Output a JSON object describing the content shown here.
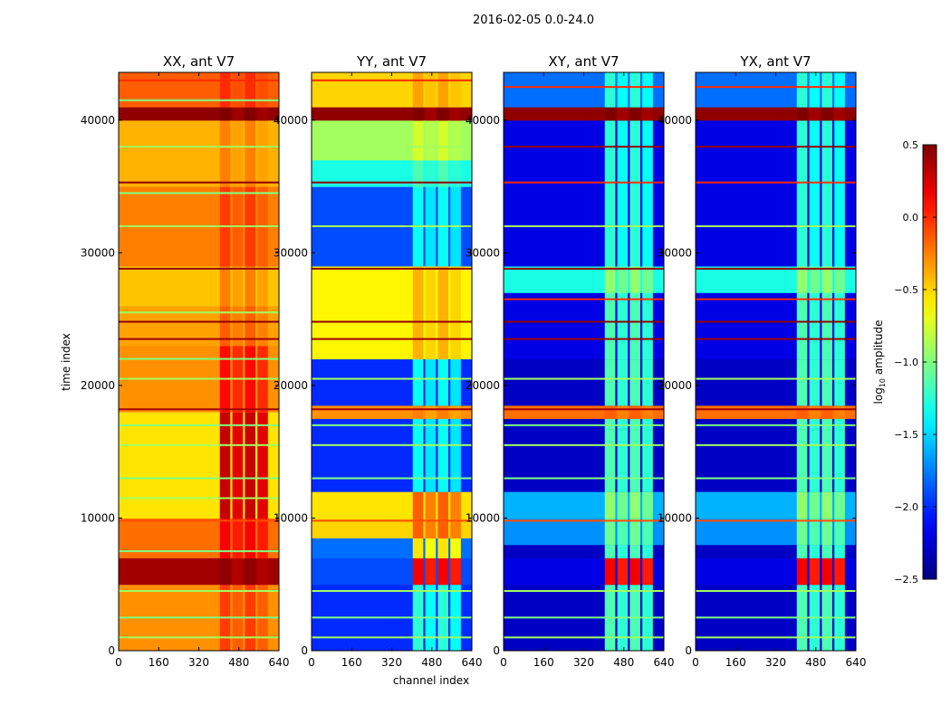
{
  "chart_data": {
    "type": "heatmap",
    "suptitle": "2016-02-05 0.0-24.0",
    "xlabel": "channel index",
    "ylabel": "time index",
    "xlim": [
      0,
      640
    ],
    "ylim": [
      0,
      43600
    ],
    "xticks": [
      0,
      160,
      320,
      480,
      640
    ],
    "yticks": [
      0,
      10000,
      20000,
      30000,
      40000
    ],
    "colorbar": {
      "label": "log10 amplitude",
      "label_base": "log",
      "label_sub": "10",
      "label_rest": " amplitude",
      "range": [
        -2.5,
        0.5
      ],
      "ticks": [
        "0.5",
        "0.0",
        "−0.5",
        "−1.0",
        "−1.5",
        "−2.0",
        "−2.5"
      ],
      "tick_values": [
        0.5,
        0.0,
        -0.5,
        -1.0,
        -1.5,
        -2.0,
        -2.5
      ],
      "colormap": "jet"
    },
    "inner_channel_range": [
      400,
      600
    ],
    "panels": [
      {
        "title": "XX, ant V7",
        "bands": [
          [
            0,
            5000,
            -0.3,
            -0.1
          ],
          [
            5000,
            7000,
            0.4,
            0.4
          ],
          [
            7000,
            10000,
            -0.2,
            0.1
          ],
          [
            10000,
            18000,
            -0.55,
            0.25
          ],
          [
            18000,
            23000,
            -0.3,
            0.05
          ],
          [
            23000,
            26000,
            -0.35,
            -0.2
          ],
          [
            26000,
            29000,
            -0.45,
            -0.3
          ],
          [
            29000,
            35000,
            -0.25,
            -0.1
          ],
          [
            35000,
            40000,
            -0.4,
            -0.3
          ],
          [
            40000,
            41000,
            0.45,
            0.45
          ],
          [
            41000,
            43600,
            -0.15,
            -0.05
          ]
        ],
        "lines": [
          [
            1000,
            -0.9
          ],
          [
            2500,
            -1.0
          ],
          [
            4500,
            -0.9
          ],
          [
            7500,
            -1.0
          ],
          [
            9800,
            -0.1
          ],
          [
            11500,
            -0.9
          ],
          [
            13000,
            -1.0
          ],
          [
            15500,
            -0.9
          ],
          [
            17000,
            -1.0
          ],
          [
            18200,
            0.4
          ],
          [
            20500,
            -0.9
          ],
          [
            22000,
            -1.0
          ],
          [
            23500,
            0.4
          ],
          [
            24800,
            0.45
          ],
          [
            25500,
            -0.9
          ],
          [
            28800,
            0.45
          ],
          [
            32000,
            -0.9
          ],
          [
            34500,
            -1.0
          ],
          [
            35300,
            0.45
          ],
          [
            38000,
            -0.9
          ],
          [
            41500,
            -1.0
          ],
          [
            43000,
            0.0
          ]
        ]
      },
      {
        "title": "YY, ant V7",
        "bands": [
          [
            0,
            5000,
            -2.0,
            -1.3
          ],
          [
            5000,
            7000,
            -1.9,
            0.1
          ],
          [
            7000,
            8500,
            -1.8,
            -0.6
          ],
          [
            8500,
            10000,
            -0.5,
            -0.2
          ],
          [
            10000,
            12000,
            -0.55,
            -0.2
          ],
          [
            12000,
            17500,
            -2.0,
            -1.4
          ],
          [
            17500,
            18500,
            -0.3,
            -0.3
          ],
          [
            18500,
            22000,
            -2.0,
            -1.4
          ],
          [
            22000,
            29000,
            -0.6,
            -0.45
          ],
          [
            29000,
            35000,
            -1.9,
            -1.4
          ],
          [
            35000,
            37000,
            -1.3,
            -1.2
          ],
          [
            37000,
            40000,
            -0.9,
            -0.8
          ],
          [
            40000,
            41000,
            0.45,
            0.45
          ],
          [
            41000,
            43600,
            -0.5,
            -0.4
          ]
        ],
        "lines": [
          [
            1000,
            -0.9
          ],
          [
            2500,
            -1.0
          ],
          [
            4500,
            -0.9
          ],
          [
            9800,
            -0.1
          ],
          [
            13000,
            -1.0
          ],
          [
            15500,
            -0.9
          ],
          [
            17000,
            -1.0
          ],
          [
            18200,
            0.4
          ],
          [
            20500,
            -0.9
          ],
          [
            23500,
            0.4
          ],
          [
            24800,
            0.45
          ],
          [
            28800,
            0.45
          ],
          [
            32000,
            -0.9
          ],
          [
            35300,
            0.45
          ],
          [
            38000,
            -0.9
          ],
          [
            43000,
            0.0
          ]
        ]
      },
      {
        "title": "XY, ant V7",
        "bands": [
          [
            0,
            5000,
            -2.3,
            -1.2
          ],
          [
            5000,
            7000,
            -2.2,
            0.1
          ],
          [
            7000,
            8000,
            -2.3,
            -1.2
          ],
          [
            8000,
            10000,
            -1.7,
            -1.1
          ],
          [
            10000,
            12000,
            -1.6,
            -1.0
          ],
          [
            12000,
            17500,
            -2.3,
            -1.2
          ],
          [
            17500,
            18500,
            -0.2,
            -0.2
          ],
          [
            18500,
            22000,
            -2.3,
            -1.2
          ],
          [
            22000,
            27000,
            -2.2,
            -1.2
          ],
          [
            27000,
            29000,
            -1.3,
            -1.0
          ],
          [
            29000,
            40000,
            -2.2,
            -1.3
          ],
          [
            40000,
            41000,
            0.45,
            0.45
          ],
          [
            41000,
            43600,
            -1.8,
            -1.3
          ]
        ],
        "lines": [
          [
            1000,
            -0.9
          ],
          [
            2500,
            -1.0
          ],
          [
            4500,
            -0.9
          ],
          [
            9800,
            -0.1
          ],
          [
            13000,
            -1.0
          ],
          [
            15500,
            -0.9
          ],
          [
            17000,
            -1.0
          ],
          [
            18200,
            0.4
          ],
          [
            20500,
            -0.9
          ],
          [
            23500,
            0.4
          ],
          [
            24800,
            0.45
          ],
          [
            26500,
            0.0
          ],
          [
            28800,
            0.45
          ],
          [
            32000,
            -0.9
          ],
          [
            35300,
            0.0
          ],
          [
            38000,
            0.45
          ],
          [
            42500,
            0.0
          ]
        ]
      },
      {
        "title": "YX, ant V7",
        "bands": [
          [
            0,
            5000,
            -2.3,
            -1.2
          ],
          [
            5000,
            7000,
            -2.2,
            0.1
          ],
          [
            7000,
            8000,
            -2.3,
            -1.2
          ],
          [
            8000,
            10000,
            -1.7,
            -1.1
          ],
          [
            10000,
            12000,
            -1.6,
            -1.0
          ],
          [
            12000,
            17500,
            -2.3,
            -1.2
          ],
          [
            17500,
            18500,
            -0.2,
            -0.2
          ],
          [
            18500,
            22000,
            -2.3,
            -1.2
          ],
          [
            22000,
            27000,
            -2.2,
            -1.2
          ],
          [
            27000,
            29000,
            -1.3,
            -1.0
          ],
          [
            29000,
            40000,
            -2.2,
            -1.3
          ],
          [
            40000,
            41000,
            0.45,
            0.45
          ],
          [
            41000,
            43600,
            -1.8,
            -1.3
          ]
        ],
        "lines": [
          [
            1000,
            -0.9
          ],
          [
            2500,
            -1.0
          ],
          [
            4500,
            -0.9
          ],
          [
            9800,
            -0.1
          ],
          [
            13000,
            -1.0
          ],
          [
            15500,
            -0.9
          ],
          [
            17000,
            -1.0
          ],
          [
            18200,
            0.4
          ],
          [
            20500,
            -0.9
          ],
          [
            23500,
            0.4
          ],
          [
            24800,
            0.45
          ],
          [
            26500,
            0.0
          ],
          [
            28800,
            0.45
          ],
          [
            32000,
            -0.9
          ],
          [
            35300,
            0.0
          ],
          [
            38000,
            0.45
          ],
          [
            42500,
            0.0
          ]
        ]
      }
    ]
  }
}
